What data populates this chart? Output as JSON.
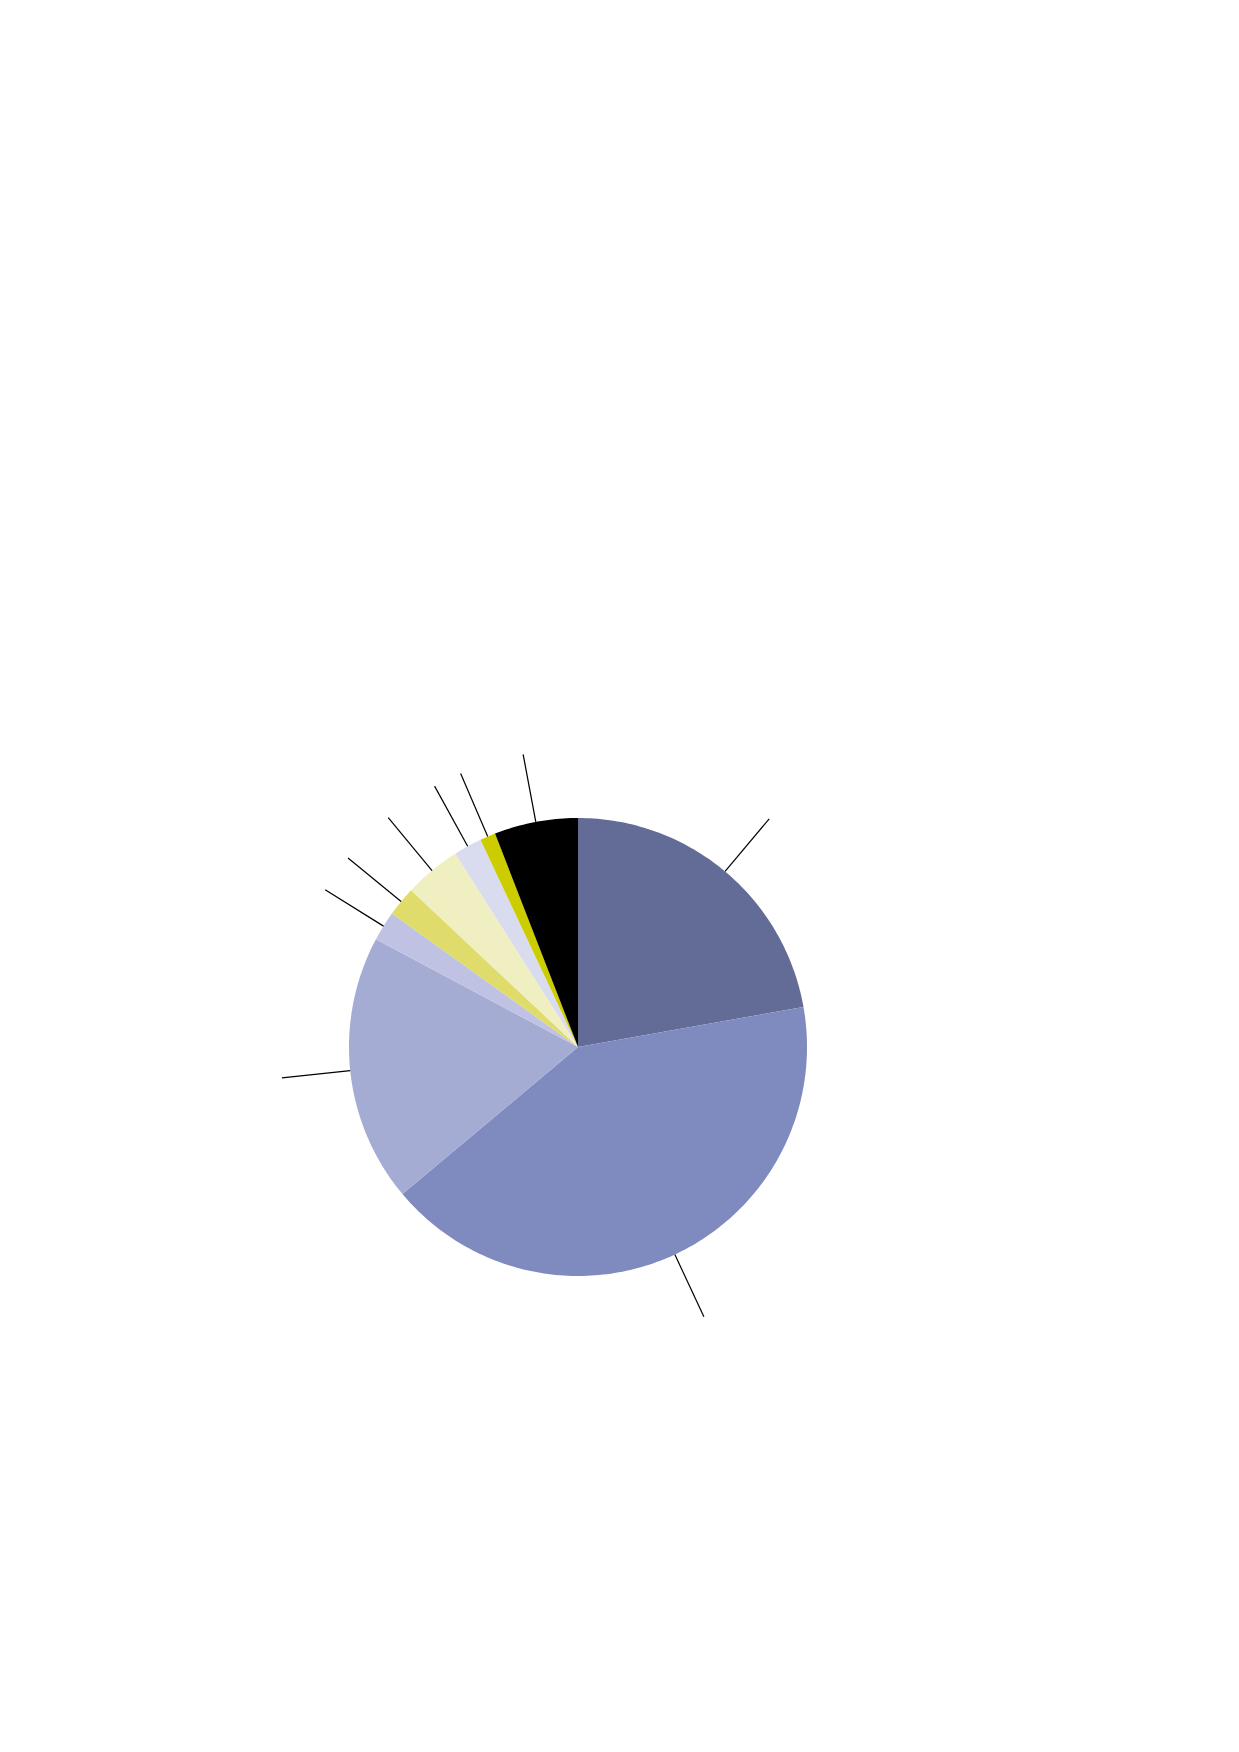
{
  "chart_data": {
    "type": "pie",
    "categories": [
      null,
      null,
      null,
      null,
      null,
      null,
      null,
      null,
      null
    ],
    "values": [
      22.2,
      41.7,
      18.9,
      2.1,
      2.1,
      4.0,
      2.0,
      1.1,
      5.9
    ],
    "colors": [
      "#636b97",
      "#7f8abf",
      "#a5acd4",
      "#bfc2e2",
      "#dfdc6b",
      "#f0efc2",
      "#d9dbee",
      "#cccc00",
      "#000000"
    ]
  }
}
